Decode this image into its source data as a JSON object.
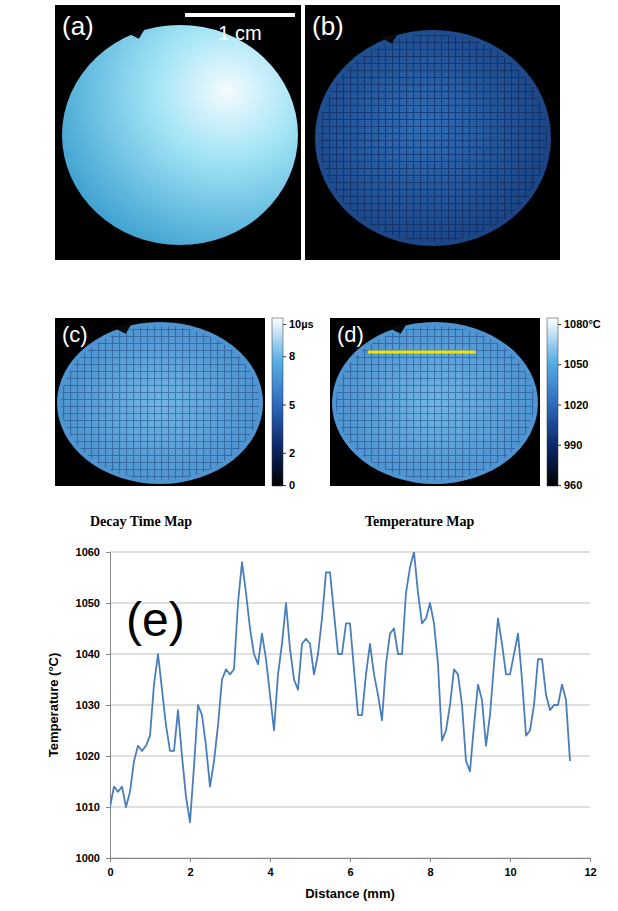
{
  "figure": {
    "panels": [
      {
        "label": "(a)",
        "scale_bar": "1 cm"
      },
      {
        "label": "(b)"
      },
      {
        "label": "(c)",
        "caption": "Decay Time Map",
        "colorbar": {
          "range": [
            0,
            10
          ],
          "ticks": [
            0,
            2,
            5,
            8,
            {
              "value": 10,
              "label": "10µs"
            }
          ]
        }
      },
      {
        "label": "(d)",
        "caption": "Temperature Map",
        "colorbar": {
          "range": [
            960,
            1080
          ],
          "ticks": [
            960,
            990,
            1020,
            1050,
            {
              "value": 1080,
              "label": "1080°C"
            }
          ]
        }
      }
    ]
  },
  "chart_data": {
    "type": "line",
    "annotations": [
      "(e)"
    ],
    "x_label": "Distance (mm)",
    "y_label": "Temperature (°C)",
    "x": [
      0,
      0.1,
      0.2,
      0.3,
      0.4,
      0.5,
      0.6,
      0.7,
      0.8,
      0.9,
      1,
      1.1,
      1.2,
      1.3,
      1.4,
      1.5,
      1.6,
      1.7,
      1.8,
      1.9,
      2,
      2.1,
      2.2,
      2.3,
      2.4,
      2.5,
      2.6,
      2.7,
      2.8,
      2.9,
      3,
      3.1,
      3.2,
      3.3,
      3.4,
      3.5,
      3.6,
      3.7,
      3.8,
      3.9,
      4,
      4.1,
      4.2,
      4.3,
      4.4,
      4.5,
      4.6,
      4.7,
      4.8,
      4.9,
      5,
      5.1,
      5.2,
      5.3,
      5.4,
      5.5,
      5.6,
      5.7,
      5.8,
      5.9,
      6,
      6.1,
      6.2,
      6.3,
      6.4,
      6.5,
      6.6,
      6.7,
      6.8,
      6.9,
      7,
      7.1,
      7.2,
      7.3,
      7.4,
      7.5,
      7.6,
      7.7,
      7.8,
      7.9,
      8,
      8.1,
      8.2,
      8.3,
      8.4,
      8.5,
      8.6,
      8.7,
      8.8,
      8.9,
      9,
      9.1,
      9.2,
      9.3,
      9.4,
      9.5,
      9.6,
      9.7,
      9.8,
      9.9,
      10,
      10.1,
      10.2,
      10.3,
      10.4,
      10.5,
      10.6,
      10.7,
      10.8,
      10.9,
      11,
      11.1,
      11.2,
      11.3,
      11.4,
      11.5
    ],
    "values": [
      1010,
      1014,
      1013,
      1014,
      1010,
      1013,
      1019,
      1022,
      1021,
      1022,
      1024,
      1034,
      1040,
      1033,
      1026,
      1021,
      1021,
      1029,
      1020,
      1012,
      1007,
      1018,
      1030,
      1028,
      1022,
      1014,
      1019,
      1026,
      1035,
      1037,
      1036,
      1037,
      1050,
      1058,
      1052,
      1045,
      1040,
      1038,
      1044,
      1039,
      1032,
      1025,
      1036,
      1042,
      1050,
      1041,
      1035,
      1033,
      1042,
      1043,
      1042,
      1036,
      1040,
      1047,
      1056,
      1056,
      1048,
      1040,
      1040,
      1046,
      1046,
      1037,
      1028,
      1028,
      1036,
      1042,
      1036,
      1032,
      1027,
      1038,
      1044,
      1045,
      1040,
      1040,
      1052,
      1057,
      1060,
      1052,
      1046,
      1047,
      1050,
      1046,
      1038,
      1023,
      1025,
      1030,
      1037,
      1036,
      1030,
      1019,
      1017,
      1026,
      1034,
      1031,
      1022,
      1028,
      1038,
      1047,
      1042,
      1036,
      1036,
      1040,
      1044,
      1035,
      1024,
      1025,
      1030,
      1039,
      1039,
      1032,
      1029,
      1030,
      1030,
      1034,
      1031,
      1019
    ],
    "color": "#4a7ebb",
    "xlim": [
      0,
      12
    ],
    "xticks": [
      0,
      2,
      4,
      6,
      8,
      10,
      12
    ],
    "ylim": [
      1000,
      1060
    ],
    "yticks": [
      1000,
      1010,
      1020,
      1030,
      1040,
      1050,
      1060
    ],
    "grid": true
  }
}
